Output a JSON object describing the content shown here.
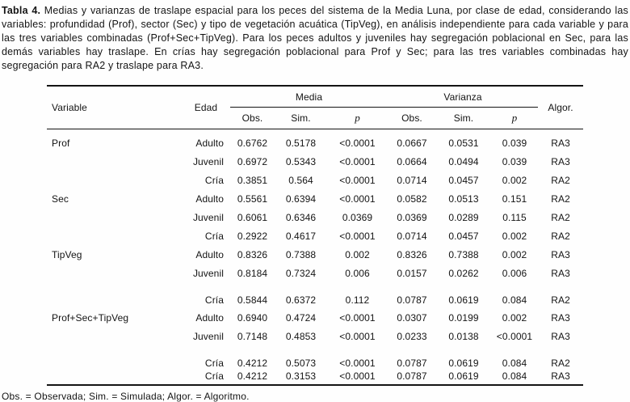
{
  "caption": {
    "label": "Tabla 4.",
    "text": " Medias y varianzas de traslape espacial para los peces del sistema de la Media Luna, por clase de edad, considerando las variables: profundidad (Prof), sector (Sec) y tipo de vegetación acuática (TipVeg), en análisis independiente para cada variable y para las tres variables combinadas (Prof+Sec+TipVeg). Para los peces adultos y juveniles hay segregación poblacional en Sec, para las demás variables hay traslape. En crías hay segregación poblacional para Prof y Sec; para las tres variables combinadas hay segregación para RA2 y traslape para RA3."
  },
  "table": {
    "headers": {
      "variable": "Variable",
      "edad": "Edad",
      "media": "Media",
      "varianza": "Varianza",
      "obs": "Obs.",
      "sim": "Sim.",
      "p": "p",
      "algor": "Algor."
    },
    "rows": [
      {
        "variable": "Prof",
        "edad": "Adulto",
        "m_obs": "0.6762",
        "m_sim": "0.5178",
        "m_p": "<0.0001",
        "v_obs": "0.0667",
        "v_sim": "0.0531",
        "v_p": "0.039",
        "algor": "RA3"
      },
      {
        "variable": "",
        "edad": "Juvenil",
        "m_obs": "0.6972",
        "m_sim": "0.5343",
        "m_p": "<0.0001",
        "v_obs": "0.0664",
        "v_sim": "0.0494",
        "v_p": "0.039",
        "algor": "RA3"
      },
      {
        "variable": "",
        "edad": "Cría",
        "m_obs": "0.3851",
        "m_sim": "0.564",
        "m_p": "<0.0001",
        "v_obs": "0.0714",
        "v_sim": "0.0457",
        "v_p": "0.002",
        "algor": "RA2"
      },
      {
        "variable": "Sec",
        "edad": "Adulto",
        "m_obs": "0.5561",
        "m_sim": "0.6394",
        "m_p": "<0.0001",
        "v_obs": "0.0582",
        "v_sim": "0.0513",
        "v_p": "0.151",
        "algor": "RA2"
      },
      {
        "variable": "",
        "edad": "Juvenil",
        "m_obs": "0.6061",
        "m_sim": "0.6346",
        "m_p": "0.0369",
        "v_obs": "0.0369",
        "v_sim": "0.0289",
        "v_p": "0.115",
        "algor": "RA2"
      },
      {
        "variable": "",
        "edad": "Cría",
        "m_obs": "0.2922",
        "m_sim": "0.4617",
        "m_p": "<0.0001",
        "v_obs": "0.0714",
        "v_sim": "0.0457",
        "v_p": "0.002",
        "algor": "RA2"
      },
      {
        "variable": "TipVeg",
        "edad": "Adulto",
        "m_obs": "0.8326",
        "m_sim": "0.7388",
        "m_p": "0.002",
        "v_obs": "0.8326",
        "v_sim": "0.7388",
        "v_p": "0.002",
        "algor": "RA3"
      },
      {
        "variable": "",
        "edad": "Juvenil",
        "m_obs": "0.8184",
        "m_sim": "0.7324",
        "m_p": "0.006",
        "v_obs": "0.0157",
        "v_sim": "0.0262",
        "v_p": "0.006",
        "algor": "RA3"
      },
      {
        "variable": "",
        "edad": "Cría",
        "m_obs": "0.5844",
        "m_sim": "0.6372",
        "m_p": "0.112",
        "v_obs": "0.0787",
        "v_sim": "0.0619",
        "v_p": "0.084",
        "algor": "RA2"
      },
      {
        "variable": "Prof+Sec+TipVeg",
        "edad": "Adulto",
        "m_obs": "0.6940",
        "m_sim": "0.4724",
        "m_p": "<0.0001",
        "v_obs": "0.0307",
        "v_sim": "0.0199",
        "v_p": "0.002",
        "algor": "RA3"
      },
      {
        "variable": "",
        "edad": "Juvenil",
        "m_obs": "0.7148",
        "m_sim": "0.4853",
        "m_p": "<0.0001",
        "v_obs": "0.0233",
        "v_sim": "0.0138",
        "v_p": "<0.0001",
        "algor": "RA3"
      },
      {
        "variable": "",
        "edad": "Cría",
        "m_obs": "0.4212",
        "m_sim": "0.5073",
        "m_p": "<0.0001",
        "v_obs": "0.0787",
        "v_sim": "0.0619",
        "v_p": "0.084",
        "algor": "RA2"
      },
      {
        "variable": "",
        "edad": "Cría",
        "m_obs": "0.4212",
        "m_sim": "0.3153",
        "m_p": "<0.0001",
        "v_obs": "0.0787",
        "v_sim": "0.0619",
        "v_p": "0.084",
        "algor": "RA3"
      }
    ]
  },
  "footnote": "Obs. = Observada; Sim. = Simulada; Algor. = Algoritmo."
}
